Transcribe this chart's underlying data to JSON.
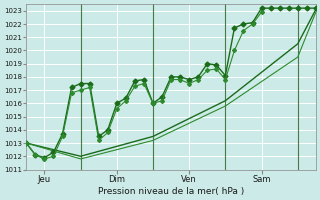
{
  "xlabel": "Pression niveau de la mer( hPa )",
  "ylim": [
    1011,
    1023.5
  ],
  "yticks": [
    1011,
    1012,
    1013,
    1014,
    1015,
    1016,
    1017,
    1018,
    1019,
    1020,
    1021,
    1022,
    1023
  ],
  "bg_color": "#cceae7",
  "grid_color": "#ffffff",
  "xlim": [
    0,
    96
  ],
  "xtick_positions": [
    6,
    30,
    54,
    78
  ],
  "xtick_labels": [
    "Jeu",
    "Dim",
    "Ven",
    "Sam"
  ],
  "vlines": [
    18,
    42,
    66,
    90
  ],
  "series1": {
    "x": [
      0,
      3,
      6,
      9,
      12,
      15,
      18,
      21,
      24,
      27,
      30,
      33,
      36,
      39,
      42,
      45,
      48,
      51,
      54,
      57,
      60,
      63,
      66,
      69,
      72,
      75,
      78,
      81,
      84,
      87,
      90,
      93,
      96
    ],
    "y": [
      1013.0,
      1012.1,
      1011.9,
      1012.3,
      1013.7,
      1017.2,
      1017.5,
      1017.5,
      1013.5,
      1014.0,
      1016.0,
      1016.4,
      1017.7,
      1017.8,
      1016.0,
      1016.5,
      1018.0,
      1018.0,
      1017.8,
      1018.0,
      1019.0,
      1018.9,
      1018.1,
      1021.7,
      1022.0,
      1022.1,
      1023.2,
      1023.2,
      1023.2,
      1023.2,
      1023.2,
      1023.2,
      1023.2
    ],
    "color": "#1a6b1a",
    "linewidth": 1.0,
    "marker": "D",
    "markersize": 2.5
  },
  "series2": {
    "x": [
      0,
      3,
      6,
      9,
      12,
      15,
      18,
      21,
      24,
      27,
      30,
      33,
      36,
      39,
      42,
      45,
      48,
      51,
      54,
      57,
      60,
      63,
      66,
      69,
      72,
      75,
      78
    ],
    "y": [
      1013.0,
      1012.1,
      1011.8,
      1012.0,
      1013.5,
      1016.8,
      1017.0,
      1017.2,
      1013.2,
      1013.8,
      1015.6,
      1016.2,
      1017.3,
      1017.5,
      1016.0,
      1016.2,
      1017.8,
      1017.8,
      1017.5,
      1017.8,
      1018.5,
      1018.6,
      1017.8,
      1020.0,
      1021.5,
      1022.0,
      1022.9
    ],
    "color": "#2d8b2d",
    "linewidth": 0.8,
    "marker": "D",
    "markersize": 2.0
  },
  "series3": {
    "x": [
      0,
      18,
      42,
      66,
      90,
      96
    ],
    "y": [
      1013.0,
      1012.0,
      1013.5,
      1016.2,
      1020.5,
      1023.1
    ],
    "color": "#1a6b1a",
    "linewidth": 1.0,
    "marker": null
  },
  "series4": {
    "x": [
      0,
      18,
      42,
      66,
      90,
      96
    ],
    "y": [
      1013.0,
      1011.8,
      1013.2,
      1015.8,
      1019.5,
      1022.9
    ],
    "color": "#2d8b2d",
    "linewidth": 0.8,
    "marker": null
  }
}
